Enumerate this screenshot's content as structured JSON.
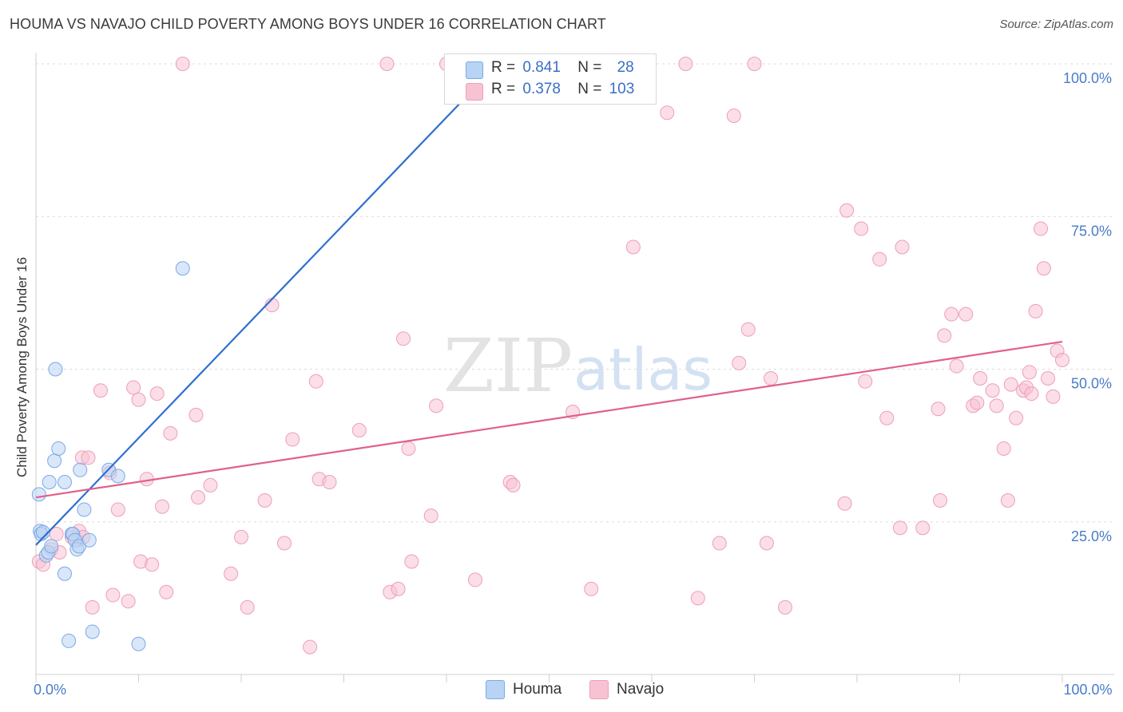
{
  "header": {
    "title": "HOUMA VS NAVAJO CHILD POVERTY AMONG BOYS UNDER 16 CORRELATION CHART",
    "source": "Source: ZipAtlas.com"
  },
  "watermark": {
    "part1": "ZIP",
    "part2": "atlas"
  },
  "legend": {
    "houma": {
      "r_label": "R =",
      "r_value": "0.841",
      "n_label": "N =",
      "n_value": "28"
    },
    "navajo": {
      "r_label": "R =",
      "r_value": "0.378",
      "n_label": "N =",
      "n_value": "103"
    }
  },
  "colors": {
    "houma_fill": "#b9d3f4",
    "houma_stroke": "#7aaae6",
    "houma_line": "#2f6fd0",
    "navajo_fill": "#f7c3d3",
    "navajo_stroke": "#ee9fb8",
    "navajo_line": "#e0608c",
    "grid": "#dcdcdc",
    "tick": "#4a7cc9"
  },
  "chart_data": {
    "type": "scatter",
    "title": "HOUMA VS NAVAJO CHILD POVERTY AMONG BOYS UNDER 16 CORRELATION CHART",
    "xlabel": "",
    "ylabel": "Child Poverty Among Boys Under 16",
    "xlim": [
      0,
      100
    ],
    "ylim": [
      0,
      100
    ],
    "y_ticks": [
      "25.0%",
      "50.0%",
      "75.0%",
      "100.0%"
    ],
    "y_tick_values": [
      25,
      50,
      75,
      100
    ],
    "x_tick_labels": [
      "0.0%",
      "100.0%"
    ],
    "x_tick_label_values": [
      0,
      100
    ],
    "grid": true,
    "legend_placement": "bottom-center",
    "series": [
      {
        "name": "Houma",
        "r": 0.841,
        "n": 28,
        "trend": {
          "x": [
            0,
            45
          ],
          "y": [
            21.2,
            100
          ]
        },
        "points": [
          [
            0.3,
            29.5
          ],
          [
            0.4,
            23.5
          ],
          [
            0.5,
            23.0
          ],
          [
            0.7,
            23.3
          ],
          [
            1.0,
            19.5
          ],
          [
            1.2,
            20.0
          ],
          [
            1.3,
            31.5
          ],
          [
            1.5,
            21.0
          ],
          [
            1.8,
            35.0
          ],
          [
            1.9,
            50.0
          ],
          [
            2.2,
            37.0
          ],
          [
            2.8,
            31.5
          ],
          [
            2.8,
            16.5
          ],
          [
            3.2,
            5.5
          ],
          [
            3.5,
            23.0
          ],
          [
            3.6,
            23.0
          ],
          [
            3.8,
            22.0
          ],
          [
            4.0,
            20.5
          ],
          [
            4.2,
            21.0
          ],
          [
            4.3,
            33.5
          ],
          [
            4.7,
            27.0
          ],
          [
            5.2,
            22.0
          ],
          [
            5.5,
            7.0
          ],
          [
            7.1,
            33.5
          ],
          [
            8.0,
            32.5
          ],
          [
            10.0,
            5.0
          ],
          [
            14.3,
            66.5
          ],
          [
            45.0,
            97.5
          ]
        ]
      },
      {
        "name": "Navajo",
        "r": 0.378,
        "n": 103,
        "trend": {
          "x": [
            0,
            100
          ],
          "y": [
            29.0,
            54.5
          ]
        },
        "points": [
          [
            0.3,
            18.5
          ],
          [
            0.7,
            18.0
          ],
          [
            1.5,
            20.5
          ],
          [
            2.0,
            23.0
          ],
          [
            2.3,
            20.0
          ],
          [
            3.5,
            22.5
          ],
          [
            4.0,
            22.0
          ],
          [
            4.2,
            23.5
          ],
          [
            4.5,
            35.5
          ],
          [
            4.6,
            22.5
          ],
          [
            5.1,
            35.5
          ],
          [
            5.5,
            11.0
          ],
          [
            6.3,
            46.5
          ],
          [
            7.2,
            33.0
          ],
          [
            7.5,
            13.0
          ],
          [
            8.0,
            27.0
          ],
          [
            9.0,
            12.0
          ],
          [
            9.5,
            47.0
          ],
          [
            10.0,
            45.0
          ],
          [
            10.2,
            18.5
          ],
          [
            10.8,
            32.0
          ],
          [
            11.3,
            18.0
          ],
          [
            11.8,
            46.0
          ],
          [
            12.3,
            27.5
          ],
          [
            12.7,
            13.5
          ],
          [
            13.1,
            39.5
          ],
          [
            14.3,
            100.0
          ],
          [
            15.6,
            42.5
          ],
          [
            15.8,
            29.0
          ],
          [
            17.0,
            31.0
          ],
          [
            19.0,
            16.5
          ],
          [
            20.0,
            22.5
          ],
          [
            20.6,
            11.0
          ],
          [
            22.3,
            28.5
          ],
          [
            23.0,
            60.5
          ],
          [
            24.2,
            21.5
          ],
          [
            25.0,
            38.5
          ],
          [
            26.7,
            4.5
          ],
          [
            27.3,
            48.0
          ],
          [
            27.6,
            32.0
          ],
          [
            28.6,
            31.5
          ],
          [
            31.5,
            40.0
          ],
          [
            34.2,
            100.0
          ],
          [
            34.5,
            13.5
          ],
          [
            35.3,
            14.0
          ],
          [
            35.8,
            55.0
          ],
          [
            36.3,
            37.0
          ],
          [
            36.6,
            18.5
          ],
          [
            38.5,
            26.0
          ],
          [
            39.0,
            44.0
          ],
          [
            40.0,
            100.0
          ],
          [
            42.8,
            15.5
          ],
          [
            46.2,
            31.5
          ],
          [
            46.5,
            31.0
          ],
          [
            52.3,
            43.0
          ],
          [
            54.1,
            14.0
          ],
          [
            58.2,
            70.0
          ],
          [
            61.5,
            92.0
          ],
          [
            63.3,
            100.0
          ],
          [
            64.5,
            12.5
          ],
          [
            66.6,
            21.5
          ],
          [
            68.0,
            91.5
          ],
          [
            68.5,
            51.0
          ],
          [
            69.4,
            56.5
          ],
          [
            70.0,
            100.0
          ],
          [
            71.2,
            21.5
          ],
          [
            71.6,
            48.5
          ],
          [
            73.0,
            11.0
          ],
          [
            78.8,
            28.0
          ],
          [
            79.0,
            76.0
          ],
          [
            80.4,
            73.0
          ],
          [
            80.8,
            48.0
          ],
          [
            82.2,
            68.0
          ],
          [
            82.9,
            42.0
          ],
          [
            84.2,
            24.0
          ],
          [
            84.4,
            70.0
          ],
          [
            86.4,
            24.0
          ],
          [
            87.9,
            43.5
          ],
          [
            88.1,
            28.5
          ],
          [
            88.5,
            55.5
          ],
          [
            89.2,
            59.0
          ],
          [
            89.7,
            50.5
          ],
          [
            90.6,
            59.0
          ],
          [
            91.3,
            44.0
          ],
          [
            91.7,
            44.5
          ],
          [
            92.0,
            48.5
          ],
          [
            93.2,
            46.5
          ],
          [
            93.6,
            44.0
          ],
          [
            94.3,
            37.0
          ],
          [
            94.7,
            28.5
          ],
          [
            95.0,
            47.5
          ],
          [
            95.5,
            42.0
          ],
          [
            96.2,
            46.5
          ],
          [
            96.5,
            47.0
          ],
          [
            96.8,
            49.5
          ],
          [
            97.4,
            59.5
          ],
          [
            97.9,
            73.0
          ],
          [
            98.2,
            66.5
          ],
          [
            98.6,
            48.5
          ],
          [
            99.1,
            45.5
          ],
          [
            99.5,
            53.0
          ],
          [
            100.0,
            51.5
          ],
          [
            97.0,
            46.0
          ]
        ]
      }
    ]
  },
  "bottom_legend": [
    {
      "label": "Houma"
    },
    {
      "label": "Navajo"
    }
  ]
}
